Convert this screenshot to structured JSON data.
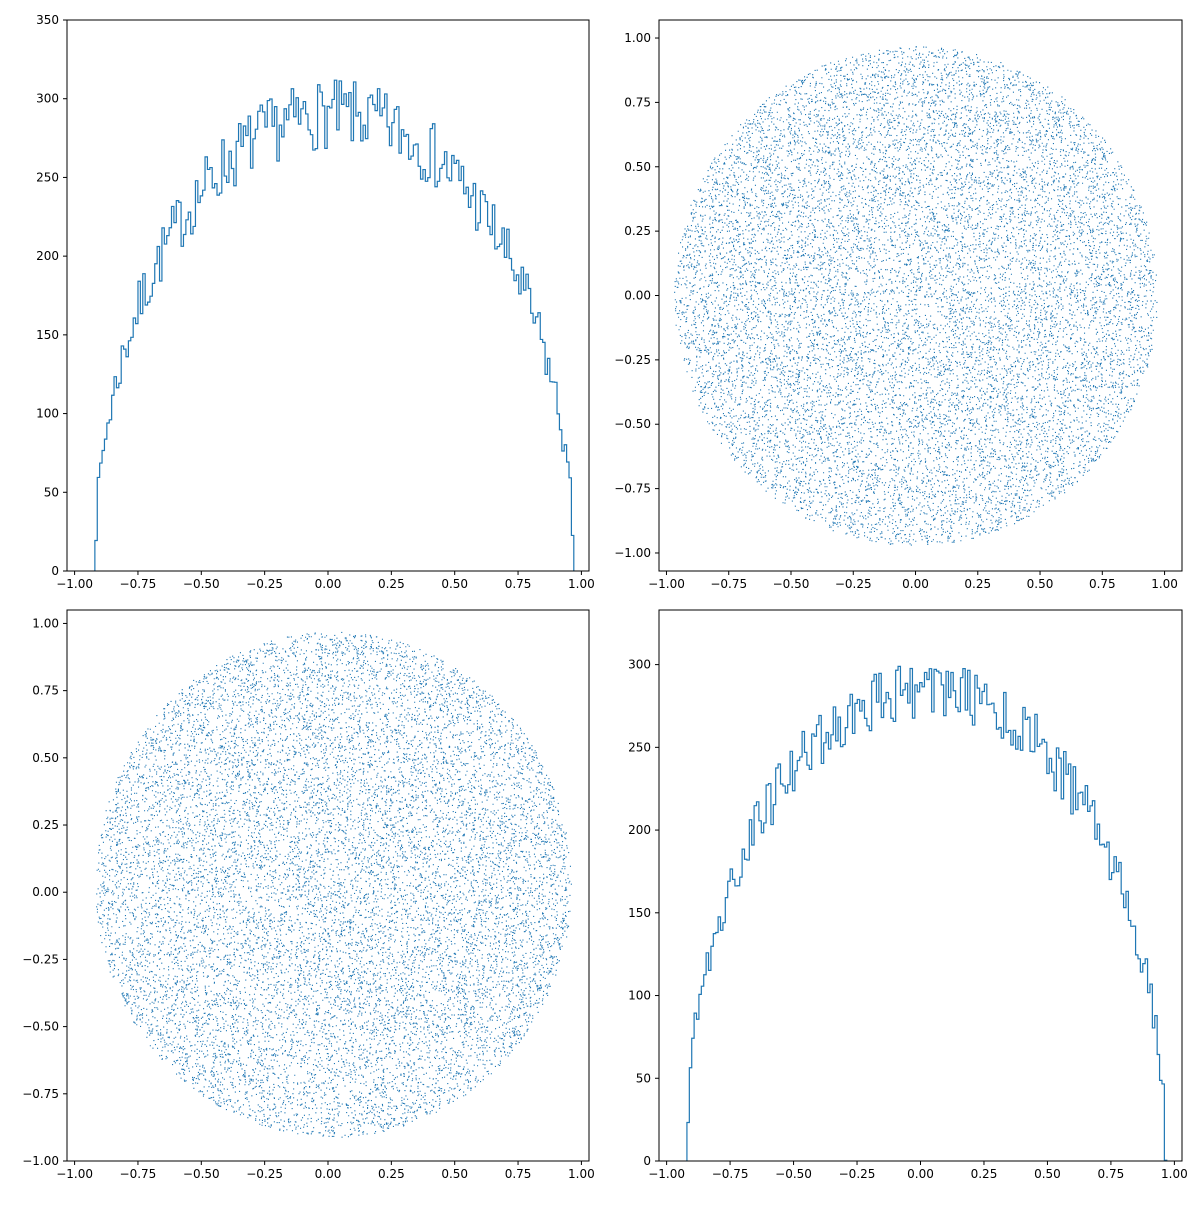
{
  "figure": {
    "background": "#ffffff",
    "series_color": "#1f77b4"
  },
  "chart_data": [
    {
      "type": "histogram-step",
      "title": "",
      "xlabel": "",
      "ylabel": "",
      "xlim": [
        -1.03,
        1.03
      ],
      "ylim": [
        0,
        350
      ],
      "xticks": [
        -1.0,
        -0.75,
        -0.5,
        -0.25,
        0.0,
        0.25,
        0.5,
        0.75,
        1.0
      ],
      "xtick_labels": [
        "−1.00",
        "−0.75",
        "−0.50",
        "−0.25",
        "0.00",
        "0.25",
        "0.50",
        "0.75",
        "1.00"
      ],
      "yticks": [
        0,
        50,
        100,
        150,
        200,
        250,
        300,
        350
      ],
      "ytick_labels": [
        "0",
        "50",
        "100",
        "150",
        "200",
        "250",
        "300",
        "350"
      ],
      "bin_range": [
        -0.92,
        0.97
      ],
      "bins": 200,
      "envelope_peak": 290,
      "envelope_center": 0.025,
      "envelope_halfwidth": 0.945,
      "noise_seed": 7,
      "noise_amplitude": 22,
      "grid": false,
      "legend": "none"
    },
    {
      "type": "scatter",
      "title": "",
      "xlabel": "",
      "ylabel": "",
      "xlim": [
        -1.03,
        1.07
      ],
      "ylim": [
        -1.07,
        1.07
      ],
      "xticks": [
        -1.0,
        -0.75,
        -0.5,
        -0.25,
        0.0,
        0.25,
        0.5,
        0.75,
        1.0
      ],
      "xtick_labels": [
        "−1.00",
        "−0.75",
        "−0.50",
        "−0.25",
        "0.00",
        "0.25",
        "0.50",
        "0.75",
        "1.00"
      ],
      "yticks": [
        -1.0,
        -0.75,
        -0.5,
        -0.25,
        0.0,
        0.25,
        0.5,
        0.75,
        1.0
      ],
      "ytick_labels": [
        "−1.00",
        "−0.75",
        "−0.50",
        "−0.25",
        "0.00",
        "0.25",
        "0.50",
        "0.75",
        "1.00"
      ],
      "point_region": {
        "shape": "disk",
        "center": [
          0.0,
          0.0
        ],
        "radius": 0.97
      },
      "point_count": 14000,
      "noise_seed": 11,
      "grid": false,
      "legend": "none"
    },
    {
      "type": "scatter",
      "title": "",
      "xlabel": "",
      "ylabel": "",
      "xlim": [
        -1.03,
        1.03
      ],
      "ylim": [
        -1.0,
        1.05
      ],
      "xticks": [
        -1.0,
        -0.75,
        -0.5,
        -0.25,
        0.0,
        0.25,
        0.5,
        0.75,
        1.0
      ],
      "xtick_labels": [
        "−1.00",
        "−0.75",
        "−0.50",
        "−0.25",
        "0.00",
        "0.25",
        "0.50",
        "0.75",
        "1.00"
      ],
      "yticks": [
        -1.0,
        -0.75,
        -0.5,
        -0.25,
        0.0,
        0.25,
        0.5,
        0.75,
        1.0
      ],
      "ytick_labels": [
        "−1.00",
        "−0.75",
        "−0.50",
        "−0.25",
        "0.00",
        "0.25",
        "0.50",
        "0.75",
        "1.00"
      ],
      "point_region": {
        "shape": "disk",
        "center": [
          0.02,
          0.03
        ],
        "radius": 0.94
      },
      "point_count": 14000,
      "noise_seed": 23,
      "grid": false,
      "legend": "none"
    },
    {
      "type": "histogram-step",
      "title": "",
      "xlabel": "",
      "ylabel": "",
      "xlim": [
        -1.03,
        1.03
      ],
      "ylim": [
        0,
        333
      ],
      "xticks": [
        -1.0,
        -0.75,
        -0.5,
        -0.25,
        0.0,
        0.25,
        0.5,
        0.75,
        1.0
      ],
      "xtick_labels": [
        "−1.00",
        "−0.75",
        "−0.50",
        "−0.25",
        "0.00",
        "0.25",
        "0.50",
        "0.75",
        "1.00"
      ],
      "yticks": [
        0,
        50,
        100,
        150,
        200,
        250,
        300
      ],
      "ytick_labels": [
        "0",
        "50",
        "100",
        "150",
        "200",
        "250",
        "300"
      ],
      "bin_range": [
        -0.92,
        0.97
      ],
      "bins": 200,
      "envelope_peak": 285,
      "envelope_center": 0.02,
      "envelope_halfwidth": 0.945,
      "noise_seed": 19,
      "noise_amplitude": 18,
      "grid": false,
      "legend": "none"
    }
  ]
}
